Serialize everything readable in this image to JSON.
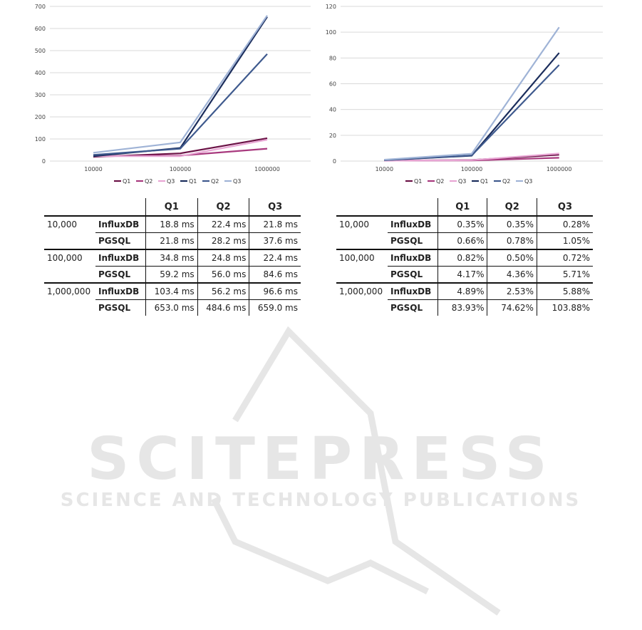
{
  "colors": {
    "influx_q1": "#6b1246",
    "influx_q2": "#a8397e",
    "influx_q3": "#e8a6d4",
    "pgsql_q1": "#1b2d5c",
    "pgsql_q2": "#3f5a8e",
    "pgsql_q3": "#9fb3d6",
    "grid": "#d9d9d9",
    "watermark": "#e6e6e6"
  },
  "watermark": {
    "title": "SCITEPRESS",
    "subtitle": "SCIENCE AND TECHNOLOGY PUBLICATIONS"
  },
  "chart_data": [
    {
      "type": "line",
      "categories": [
        "10000",
        "100000",
        "1000000"
      ],
      "ylim": [
        0,
        700
      ],
      "yticks": [
        0,
        100,
        200,
        300,
        400,
        500,
        600,
        700
      ],
      "grid": true,
      "legend_position": "bottom",
      "series": [
        {
          "name": "Q1",
          "color_key": "influx_q1",
          "values": [
            18.8,
            34.8,
            103.4
          ]
        },
        {
          "name": "Q2",
          "color_key": "influx_q2",
          "values": [
            22.4,
            24.8,
            56.2
          ]
        },
        {
          "name": "Q3",
          "color_key": "influx_q3",
          "values": [
            21.8,
            22.4,
            96.6
          ]
        },
        {
          "name": "Q1",
          "color_key": "pgsql_q1",
          "values": [
            21.8,
            59.2,
            653.0
          ]
        },
        {
          "name": "Q2",
          "color_key": "pgsql_q2",
          "values": [
            28.2,
            56.0,
            484.6
          ]
        },
        {
          "name": "Q3",
          "color_key": "pgsql_q3",
          "values": [
            37.6,
            84.6,
            659.0
          ]
        }
      ]
    },
    {
      "type": "line",
      "categories": [
        "10000",
        "100000",
        "1000000"
      ],
      "ylim": [
        0,
        120
      ],
      "yticks": [
        0,
        20,
        40,
        60,
        80,
        100,
        120
      ],
      "grid": true,
      "legend_position": "bottom",
      "series": [
        {
          "name": "Q1",
          "color_key": "influx_q1",
          "values": [
            0.35,
            0.82,
            4.89
          ]
        },
        {
          "name": "Q2",
          "color_key": "influx_q2",
          "values": [
            0.35,
            0.5,
            2.53
          ]
        },
        {
          "name": "Q3",
          "color_key": "influx_q3",
          "values": [
            0.28,
            0.72,
            5.88
          ]
        },
        {
          "name": "Q1",
          "color_key": "pgsql_q1",
          "values": [
            0.66,
            4.17,
            83.93
          ]
        },
        {
          "name": "Q2",
          "color_key": "pgsql_q2",
          "values": [
            0.78,
            4.36,
            74.62
          ]
        },
        {
          "name": "Q3",
          "color_key": "pgsql_q3",
          "values": [
            1.05,
            5.71,
            103.88
          ]
        }
      ]
    }
  ],
  "tables": [
    {
      "headers": [
        "Q1",
        "Q2",
        "Q3"
      ],
      "rows": [
        {
          "size": "10,000",
          "db": "InfluxDB",
          "q1": "18.8 ms",
          "q2": "22.4 ms",
          "q3": "21.8 ms"
        },
        {
          "size": "",
          "db": "PGSQL",
          "q1": "21.8 ms",
          "q2": "28.2 ms",
          "q3": "37.6 ms"
        },
        {
          "size": "100,000",
          "db": "InfluxDB",
          "q1": "34.8 ms",
          "q2": "24.8 ms",
          "q3": "22.4 ms"
        },
        {
          "size": "",
          "db": "PGSQL",
          "q1": "59.2 ms",
          "q2": "56.0 ms",
          "q3": "84.6 ms"
        },
        {
          "size": "1,000,000",
          "db": "InfluxDB",
          "q1": "103.4 ms",
          "q2": "56.2 ms",
          "q3": "96.6 ms"
        },
        {
          "size": "",
          "db": "PGSQL",
          "q1": "653.0 ms",
          "q2": "484.6 ms",
          "q3": "659.0 ms"
        }
      ]
    },
    {
      "headers": [
        "Q1",
        "Q2",
        "Q3"
      ],
      "rows": [
        {
          "size": "10,000",
          "db": "InfluxDB",
          "q1": "0.35%",
          "q2": "0.35%",
          "q3": "0.28%"
        },
        {
          "size": "",
          "db": "PGSQL",
          "q1": "0.66%",
          "q2": "0.78%",
          "q3": "1.05%"
        },
        {
          "size": "100,000",
          "db": "InfluxDB",
          "q1": "0.82%",
          "q2": "0.50%",
          "q3": "0.72%"
        },
        {
          "size": "",
          "db": "PGSQL",
          "q1": "4.17%",
          "q2": "4.36%",
          "q3": "5.71%"
        },
        {
          "size": "1,000,000",
          "db": "InfluxDB",
          "q1": "4.89%",
          "q2": "2.53%",
          "q3": "5.88%"
        },
        {
          "size": "",
          "db": "PGSQL",
          "q1": "83.93%",
          "q2": "74.62%",
          "q3": "103.88%"
        }
      ]
    }
  ]
}
